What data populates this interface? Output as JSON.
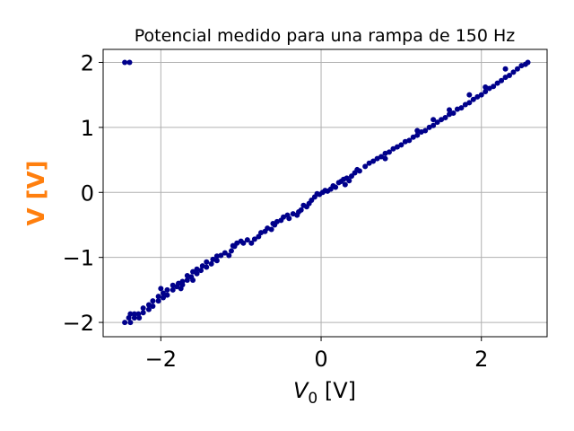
{
  "chart_data": {
    "type": "scatter",
    "title": "Potencial medido para una rampa de 150 Hz",
    "xlabel": {
      "prefix": "V",
      "subscript": "0",
      "suffix": " [V]"
    },
    "ylabel": "V [V]",
    "ylabel_color": "#ff7f0e",
    "point_color": "#00008b",
    "xlim": [
      -2.72,
      2.82
    ],
    "ylim": [
      -2.22,
      2.2
    ],
    "xticks": [
      -2,
      0,
      2
    ],
    "xtick_labels": [
      "−2",
      "0",
      "2"
    ],
    "yticks": [
      -2,
      -1,
      0,
      1,
      2
    ],
    "ytick_labels": [
      "−2",
      "−1",
      "0",
      "1",
      "2"
    ],
    "grid": true,
    "legend": "none",
    "series": [
      {
        "points": [
          [
            -2.45,
            2.0
          ],
          [
            -2.39,
            2.0
          ],
          [
            -2.45,
            -2.0
          ],
          [
            -2.38,
            -2.0
          ],
          [
            -2.4,
            -1.93
          ],
          [
            -2.38,
            -1.87
          ],
          [
            -2.33,
            -1.87
          ],
          [
            -2.33,
            -1.93
          ],
          [
            -2.28,
            -1.87
          ],
          [
            -2.27,
            -1.93
          ],
          [
            -2.22,
            -1.85
          ],
          [
            -2.22,
            -1.78
          ],
          [
            -2.15,
            -1.8
          ],
          [
            -2.15,
            -1.73
          ],
          [
            -2.1,
            -1.75
          ],
          [
            -2.1,
            -1.67
          ],
          [
            -2.03,
            -1.67
          ],
          [
            -2.03,
            -1.6
          ],
          [
            -1.97,
            -1.62
          ],
          [
            -1.97,
            -1.55
          ],
          [
            -1.92,
            -1.58
          ],
          [
            -1.92,
            -1.5
          ],
          [
            -1.85,
            -1.5
          ],
          [
            -1.85,
            -1.43
          ],
          [
            -1.8,
            -1.45
          ],
          [
            -1.78,
            -1.4
          ],
          [
            -1.73,
            -1.42
          ],
          [
            -1.73,
            -1.37
          ],
          [
            -1.67,
            -1.35
          ],
          [
            -1.67,
            -1.28
          ],
          [
            -1.62,
            -1.3
          ],
          [
            -1.6,
            -1.22
          ],
          [
            -1.55,
            -1.25
          ],
          [
            -1.55,
            -1.18
          ],
          [
            -1.5,
            -1.2
          ],
          [
            -1.48,
            -1.13
          ],
          [
            -1.43,
            -1.15
          ],
          [
            -1.43,
            -1.07
          ],
          [
            -1.37,
            -1.1
          ],
          [
            -1.35,
            -1.03
          ],
          [
            -1.3,
            -1.05
          ],
          [
            -1.3,
            -0.98
          ],
          [
            -1.25,
            -0.97
          ],
          [
            -1.2,
            -0.93
          ],
          [
            -1.15,
            -0.97
          ],
          [
            -1.12,
            -0.9
          ],
          [
            -1.08,
            -0.83
          ],
          [
            -1.05,
            -0.78
          ],
          [
            -1.0,
            -0.75
          ],
          [
            -0.97,
            -0.78
          ],
          [
            -0.92,
            -0.73
          ],
          [
            -0.87,
            -0.78
          ],
          [
            -0.83,
            -0.72
          ],
          [
            -0.78,
            -0.68
          ],
          [
            -0.75,
            -0.62
          ],
          [
            -0.7,
            -0.6
          ],
          [
            -0.67,
            -0.55
          ],
          [
            -0.62,
            -0.57
          ],
          [
            -0.58,
            -0.5
          ],
          [
            -0.55,
            -0.45
          ],
          [
            -0.5,
            -0.43
          ],
          [
            -0.47,
            -0.38
          ],
          [
            -0.42,
            -0.35
          ],
          [
            -0.4,
            -0.4
          ],
          [
            -0.35,
            -0.33
          ],
          [
            -0.3,
            -0.35
          ],
          [
            -0.28,
            -0.3
          ],
          [
            -0.25,
            -0.27
          ],
          [
            -0.22,
            -0.2
          ],
          [
            -0.18,
            -0.22
          ],
          [
            -0.15,
            -0.17
          ],
          [
            -0.12,
            -0.12
          ],
          [
            -0.08,
            -0.07
          ],
          [
            -0.05,
            -0.02
          ],
          [
            -0.02,
            -0.03
          ],
          [
            0.02,
            0.0
          ],
          [
            0.05,
            0.03
          ],
          [
            0.08,
            0.02
          ],
          [
            0.12,
            0.05
          ],
          [
            0.15,
            0.1
          ],
          [
            0.18,
            0.08
          ],
          [
            0.22,
            0.15
          ],
          [
            0.25,
            0.17
          ],
          [
            0.28,
            0.2
          ],
          [
            0.32,
            0.22
          ],
          [
            0.35,
            0.18
          ],
          [
            0.38,
            0.25
          ],
          [
            0.42,
            0.3
          ],
          [
            0.45,
            0.35
          ],
          [
            0.48,
            0.33
          ],
          [
            0.55,
            0.4
          ],
          [
            0.6,
            0.45
          ],
          [
            0.65,
            0.48
          ],
          [
            0.7,
            0.52
          ],
          [
            0.75,
            0.55
          ],
          [
            0.8,
            0.6
          ],
          [
            0.85,
            0.62
          ],
          [
            0.9,
            0.67
          ],
          [
            0.95,
            0.7
          ],
          [
            1.0,
            0.73
          ],
          [
            1.05,
            0.78
          ],
          [
            1.1,
            0.8
          ],
          [
            1.15,
            0.85
          ],
          [
            1.2,
            0.88
          ],
          [
            1.25,
            0.93
          ],
          [
            1.3,
            0.95
          ],
          [
            1.35,
            1.0
          ],
          [
            1.4,
            1.03
          ],
          [
            1.45,
            1.08
          ],
          [
            1.5,
            1.12
          ],
          [
            1.55,
            1.15
          ],
          [
            1.6,
            1.2
          ],
          [
            1.65,
            1.22
          ],
          [
            1.7,
            1.28
          ],
          [
            1.75,
            1.3
          ],
          [
            1.8,
            1.35
          ],
          [
            1.85,
            1.38
          ],
          [
            1.9,
            1.43
          ],
          [
            1.95,
            1.47
          ],
          [
            2.0,
            1.5
          ],
          [
            2.05,
            1.55
          ],
          [
            2.1,
            1.6
          ],
          [
            2.15,
            1.63
          ],
          [
            2.2,
            1.68
          ],
          [
            2.25,
            1.72
          ],
          [
            2.3,
            1.77
          ],
          [
            2.35,
            1.8
          ],
          [
            2.4,
            1.85
          ],
          [
            2.45,
            1.9
          ],
          [
            2.5,
            1.95
          ],
          [
            2.55,
            1.97
          ],
          [
            2.58,
            2.0
          ],
          [
            1.4,
            1.12
          ],
          [
            1.6,
            1.27
          ],
          [
            1.85,
            1.5
          ],
          [
            2.05,
            1.62
          ],
          [
            0.3,
            0.12
          ],
          [
            -0.6,
            -0.48
          ],
          [
            -1.1,
            -0.82
          ],
          [
            -1.6,
            -1.35
          ],
          [
            -2.0,
            -1.48
          ],
          [
            0.8,
            0.52
          ],
          [
            1.2,
            0.95
          ],
          [
            2.3,
            1.9
          ],
          [
            -1.75,
            -1.48
          ]
        ]
      }
    ]
  }
}
